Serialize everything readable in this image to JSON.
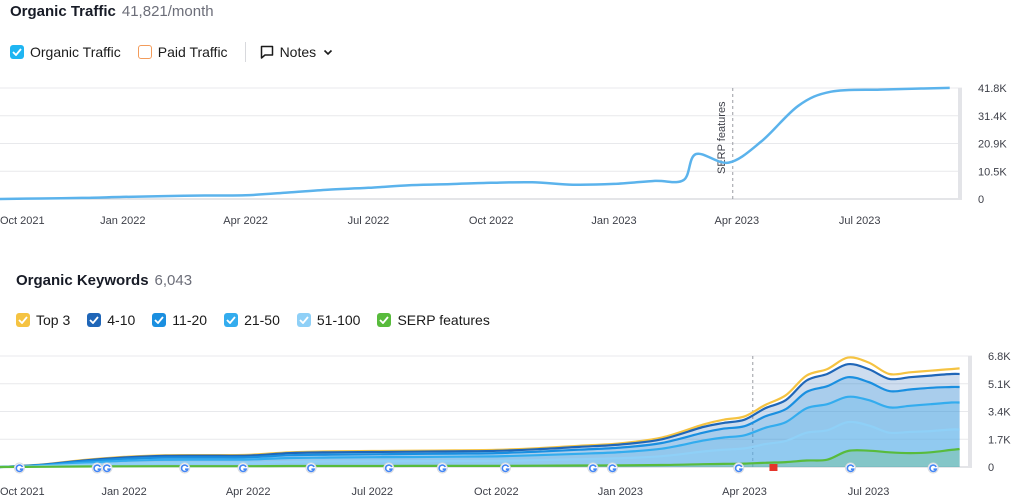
{
  "traffic": {
    "title": "Organic Traffic",
    "value": "41,821/month",
    "legend": [
      {
        "label": "Organic Traffic",
        "checked": true,
        "color": "#1fb5f2"
      },
      {
        "label": "Paid Traffic",
        "checked": false,
        "color": "#f39c5b"
      }
    ],
    "notes_label": "Notes",
    "annotation": "SERP features"
  },
  "keywords": {
    "title": "Organic Keywords",
    "value": "6,043",
    "legend": [
      {
        "label": "Top 3",
        "color": "#f5c342"
      },
      {
        "label": "4-10",
        "color": "#1f66b8"
      },
      {
        "label": "11-20",
        "color": "#1a8fe0"
      },
      {
        "label": "21-50",
        "color": "#33acee"
      },
      {
        "label": "51-100",
        "color": "#8fd0f7"
      },
      {
        "label": "SERP features",
        "color": "#58bb3c"
      }
    ]
  },
  "chart_data": [
    {
      "type": "line",
      "title": "Organic Traffic",
      "x_ticks": [
        "Oct 2021",
        "Jan 2022",
        "Apr 2022",
        "Jul 2022",
        "Oct 2022",
        "Jan 2023",
        "Apr 2023",
        "Jul 2023"
      ],
      "y_ticks": [
        "41.8K",
        "31.4K",
        "20.9K",
        "10.5K",
        "0"
      ],
      "ylim": [
        0,
        41800
      ],
      "xlim": [
        0,
        23.5
      ],
      "annotation": {
        "label": "SERP features",
        "x": 17.9
      },
      "series": [
        {
          "name": "Organic Traffic",
          "color": "#5bb3ec",
          "points": [
            [
              0,
              0
            ],
            [
              1,
              200
            ],
            [
              2,
              400
            ],
            [
              3,
              800
            ],
            [
              4,
              1100
            ],
            [
              5,
              1300
            ],
            [
              6,
              1400
            ],
            [
              7,
              2400
            ],
            [
              8,
              3500
            ],
            [
              9,
              4200
            ],
            [
              10,
              5200
            ],
            [
              11,
              5600
            ],
            [
              12,
              6100
            ],
            [
              13,
              6300
            ],
            [
              14,
              5400
            ],
            [
              15,
              5700
            ],
            [
              16,
              6800
            ],
            [
              16.7,
              7100
            ],
            [
              17,
              16900
            ],
            [
              17.8,
              13700
            ],
            [
              18.6,
              21700
            ],
            [
              19.5,
              35100
            ],
            [
              20.3,
              40400
            ],
            [
              21.5,
              41200
            ],
            [
              22.5,
              41600
            ],
            [
              23.2,
              41821
            ]
          ]
        }
      ]
    },
    {
      "type": "area",
      "title": "Organic Keywords",
      "x_ticks": [
        "Oct 2021",
        "Jan 2022",
        "Apr 2022",
        "Jul 2022",
        "Oct 2022",
        "Jan 2023",
        "Apr 2023",
        "Jul 2023"
      ],
      "y_ticks": [
        "6.8K",
        "5.1K",
        "3.4K",
        "1.7K",
        "0"
      ],
      "ylim": [
        0,
        6800
      ],
      "xlim": [
        0,
        23.5
      ],
      "annotation": {
        "x": 18.2
      },
      "x": [
        0,
        1,
        2,
        3,
        4,
        5,
        6,
        7,
        8,
        9,
        10,
        11,
        12,
        13,
        14,
        15,
        16,
        17,
        17.5,
        18,
        18.5,
        19,
        19.5,
        20,
        20.5,
        21,
        21.5,
        22,
        22.5,
        23,
        23.2
      ],
      "series": [
        {
          "name": "Top 3",
          "color": "#f5c342",
          "values": [
            0,
            150,
            420,
            620,
            720,
            730,
            750,
            900,
            960,
            980,
            1000,
            1020,
            1050,
            1150,
            1300,
            1450,
            1800,
            2600,
            2900,
            3100,
            3800,
            4400,
            5600,
            6000,
            6700,
            6400,
            5700,
            5800,
            5900,
            6000,
            6043
          ]
        },
        {
          "name": "4-10",
          "color": "#1f66b8",
          "values": [
            0,
            140,
            390,
            580,
            680,
            690,
            700,
            850,
            900,
            920,
            940,
            960,
            990,
            1090,
            1230,
            1380,
            1700,
            2450,
            2700,
            2900,
            3600,
            4100,
            5300,
            5700,
            6300,
            6000,
            5400,
            5500,
            5600,
            5700,
            5700
          ]
        },
        {
          "name": "11-20",
          "color": "#1a8fe0",
          "values": [
            0,
            120,
            340,
            500,
            580,
            590,
            600,
            720,
            760,
            780,
            800,
            820,
            850,
            940,
            1060,
            1190,
            1470,
            2100,
            2350,
            2500,
            3100,
            3550,
            4600,
            4950,
            5500,
            5200,
            4650,
            4750,
            4850,
            4900,
            4900
          ]
        },
        {
          "name": "21-50",
          "color": "#33acee",
          "values": [
            0,
            90,
            250,
            380,
            440,
            450,
            460,
            550,
            580,
            600,
            610,
            630,
            650,
            720,
            810,
            910,
            1120,
            1620,
            1810,
            1940,
            2400,
            2750,
            3600,
            3850,
            4300,
            4100,
            3650,
            3750,
            3850,
            3950,
            3950
          ]
        },
        {
          "name": "51-100",
          "color": "#8fd0f7",
          "values": [
            0,
            50,
            140,
            210,
            250,
            260,
            260,
            320,
            340,
            350,
            360,
            370,
            380,
            420,
            480,
            540,
            660,
            950,
            1060,
            1140,
            1400,
            1600,
            2100,
            2250,
            2750,
            2550,
            2100,
            2150,
            2200,
            2300,
            2300
          ]
        },
        {
          "name": "SERP features",
          "color": "#58bb3c",
          "values": [
            0,
            10,
            30,
            40,
            50,
            50,
            50,
            60,
            60,
            60,
            70,
            70,
            70,
            80,
            90,
            100,
            120,
            170,
            190,
            210,
            260,
            300,
            400,
            450,
            980,
            1000,
            900,
            850,
            900,
            1050,
            1100
          ]
        }
      ]
    }
  ]
}
